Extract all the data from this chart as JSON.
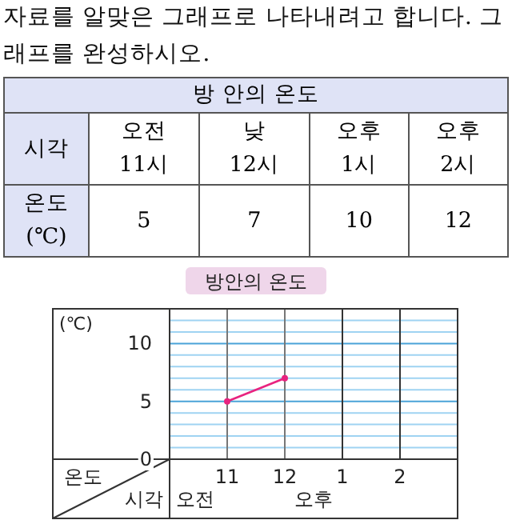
{
  "chart_data": {
    "type": "line",
    "subtitle": "자료를 알맞은 그래프로 나타내려고 합니다. 그래프를 완성하시오.",
    "title": "방안의 온도",
    "ylabel": "(℃)",
    "xlabel": "시각",
    "annotations": [
      "온도",
      "오전",
      "오후",
      "방 안의 온도",
      "시각",
      "오전\n11시",
      "낮\n12시",
      "오후\n1시",
      "오후\n2시",
      "온도\n(℃)",
      "5",
      "7",
      "10",
      "12"
    ],
    "categories": [
      "11",
      "12",
      "1",
      "2"
    ],
    "series": [
      {
        "color": "#e8237f",
        "values": [
          5,
          7,
          null,
          null
        ]
      }
    ],
    "ylim": [
      0,
      13
    ],
    "yticks": [
      0,
      {
        "value": 1,
        "label": null
      },
      {
        "value": 2,
        "label": null
      },
      {
        "value": 3,
        "label": null
      },
      {
        "value": 4,
        "label": null
      },
      5,
      {
        "value": 6,
        "label": null
      },
      {
        "value": 7,
        "label": null
      },
      {
        "value": 8,
        "label": null
      },
      {
        "value": 9,
        "label": null
      },
      10,
      {
        "value": 11,
        "label": null
      },
      {
        "value": 12,
        "label": null
      }
    ],
    "grid": true,
    "marker": "circle"
  }
}
